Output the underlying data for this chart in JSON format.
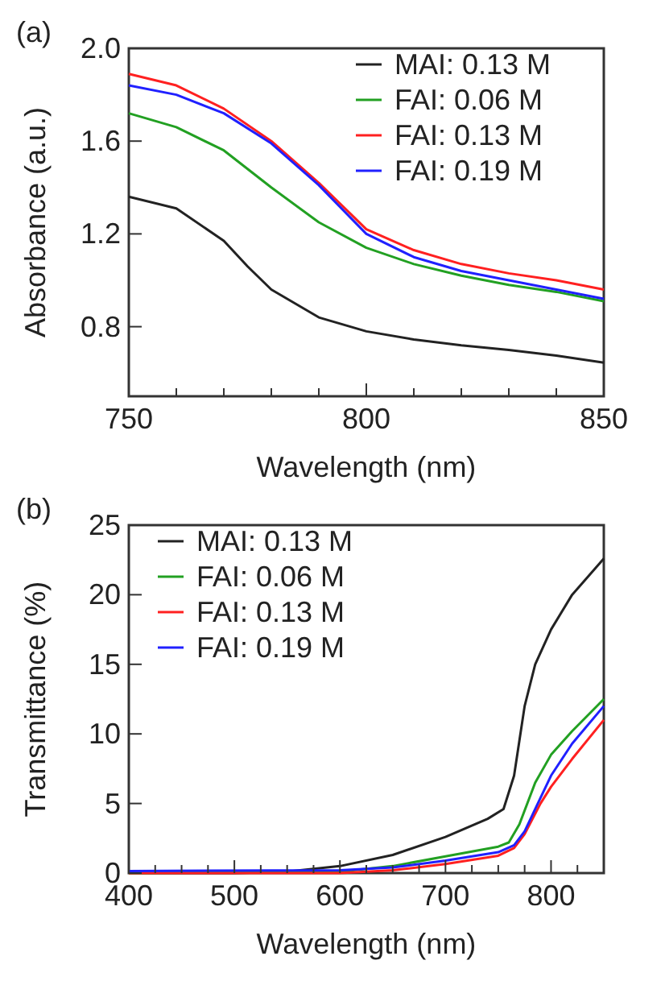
{
  "chart_data": [
    {
      "type": "line",
      "title": "(a)",
      "xlabel": "Wavelength (nm)",
      "ylabel": "Absorbance (a.u.)",
      "xlim": [
        750,
        850
      ],
      "ylim": [
        0.5,
        2.0
      ],
      "xticks": [
        750,
        {
          "value": 760,
          "label": null
        },
        {
          "value": 770,
          "label": null
        },
        {
          "value": 780,
          "label": null
        },
        {
          "value": 790,
          "label": null
        },
        800,
        {
          "value": 810,
          "label": null
        },
        {
          "value": 820,
          "label": null
        },
        {
          "value": 830,
          "label": null
        },
        {
          "value": 840,
          "label": null
        },
        850
      ],
      "yticks": [
        {
          "value": 0.8,
          "label": "0.8"
        },
        {
          "value": 1.2,
          "label": "1.2"
        },
        {
          "value": 1.6,
          "label": "1.6"
        },
        {
          "value": 2.0,
          "label": "2.0"
        }
      ],
      "legend": "top right",
      "grid": false,
      "series": [
        {
          "name": "MAI: 0.13 M",
          "color": "#222222",
          "x": [
            750,
            760,
            770,
            775,
            780,
            790,
            800,
            810,
            820,
            830,
            840,
            850
          ],
          "values": [
            1.36,
            1.31,
            1.17,
            1.06,
            0.96,
            0.84,
            0.78,
            0.745,
            0.72,
            0.7,
            0.675,
            0.645
          ]
        },
        {
          "name": "FAI: 0.06 M",
          "color": "#22a022",
          "x": [
            750,
            760,
            770,
            780,
            790,
            800,
            810,
            820,
            830,
            840,
            850
          ],
          "values": [
            1.72,
            1.66,
            1.56,
            1.4,
            1.25,
            1.14,
            1.07,
            1.02,
            0.98,
            0.95,
            0.91
          ]
        },
        {
          "name": "FAI: 0.13 M",
          "color": "#ff2020",
          "x": [
            750,
            760,
            770,
            780,
            790,
            800,
            810,
            820,
            830,
            840,
            850
          ],
          "values": [
            1.89,
            1.84,
            1.74,
            1.6,
            1.42,
            1.22,
            1.13,
            1.07,
            1.03,
            1.0,
            0.96
          ]
        },
        {
          "name": "FAI: 0.19 M",
          "color": "#2020ff",
          "x": [
            750,
            760,
            770,
            780,
            790,
            800,
            810,
            820,
            830,
            840,
            850
          ],
          "values": [
            1.84,
            1.8,
            1.72,
            1.59,
            1.41,
            1.2,
            1.1,
            1.04,
            1.0,
            0.96,
            0.92
          ]
        }
      ]
    },
    {
      "type": "line",
      "title": "(b)",
      "xlabel": "Wavelength (nm)",
      "ylabel": "Transmittance (%)",
      "xlim": [
        400,
        850
      ],
      "ylim": [
        0,
        25
      ],
      "xticks": [
        400,
        {
          "value": 425,
          "label": null
        },
        {
          "value": 450,
          "label": null
        },
        {
          "value": 475,
          "label": null
        },
        500,
        {
          "value": 525,
          "label": null
        },
        {
          "value": 550,
          "label": null
        },
        {
          "value": 575,
          "label": null
        },
        600,
        {
          "value": 625,
          "label": null
        },
        {
          "value": 650,
          "label": null
        },
        {
          "value": 675,
          "label": null
        },
        700,
        {
          "value": 725,
          "label": null
        },
        {
          "value": 750,
          "label": null
        },
        {
          "value": 775,
          "label": null
        },
        800,
        {
          "value": 825,
          "label": null
        }
      ],
      "yticks": [
        0,
        5,
        10,
        15,
        20,
        25
      ],
      "legend": "top left",
      "grid": false,
      "series": [
        {
          "name": "MAI: 0.13 M",
          "color": "#222222",
          "x": [
            400,
            500,
            550,
            600,
            650,
            700,
            740,
            755,
            765,
            770,
            775,
            785,
            800,
            820,
            850
          ],
          "values": [
            0,
            0,
            0.1,
            0.5,
            1.3,
            2.6,
            3.9,
            4.6,
            7,
            9.5,
            12,
            15,
            17.5,
            20,
            22.6
          ]
        },
        {
          "name": "FAI: 0.06 M",
          "color": "#22a022",
          "x": [
            400,
            600,
            650,
            700,
            750,
            760,
            770,
            785,
            800,
            820,
            850
          ],
          "values": [
            0,
            0.1,
            0.5,
            1.2,
            1.9,
            2.2,
            3.5,
            6.5,
            8.5,
            10.2,
            12.5
          ]
        },
        {
          "name": "FAI: 0.13 M",
          "color": "#ff2020",
          "x": [
            400,
            600,
            650,
            700,
            750,
            765,
            775,
            790,
            800,
            820,
            850
          ],
          "values": [
            0,
            0,
            0.2,
            0.65,
            1.25,
            1.8,
            2.8,
            5,
            6.2,
            8.2,
            11
          ]
        },
        {
          "name": "FAI: 0.19 M",
          "color": "#2020ff",
          "x": [
            400,
            600,
            650,
            700,
            750,
            765,
            775,
            790,
            800,
            820,
            850
          ],
          "values": [
            0.15,
            0.2,
            0.4,
            0.9,
            1.5,
            2.0,
            3,
            5.4,
            7,
            9.3,
            12
          ]
        }
      ]
    }
  ]
}
